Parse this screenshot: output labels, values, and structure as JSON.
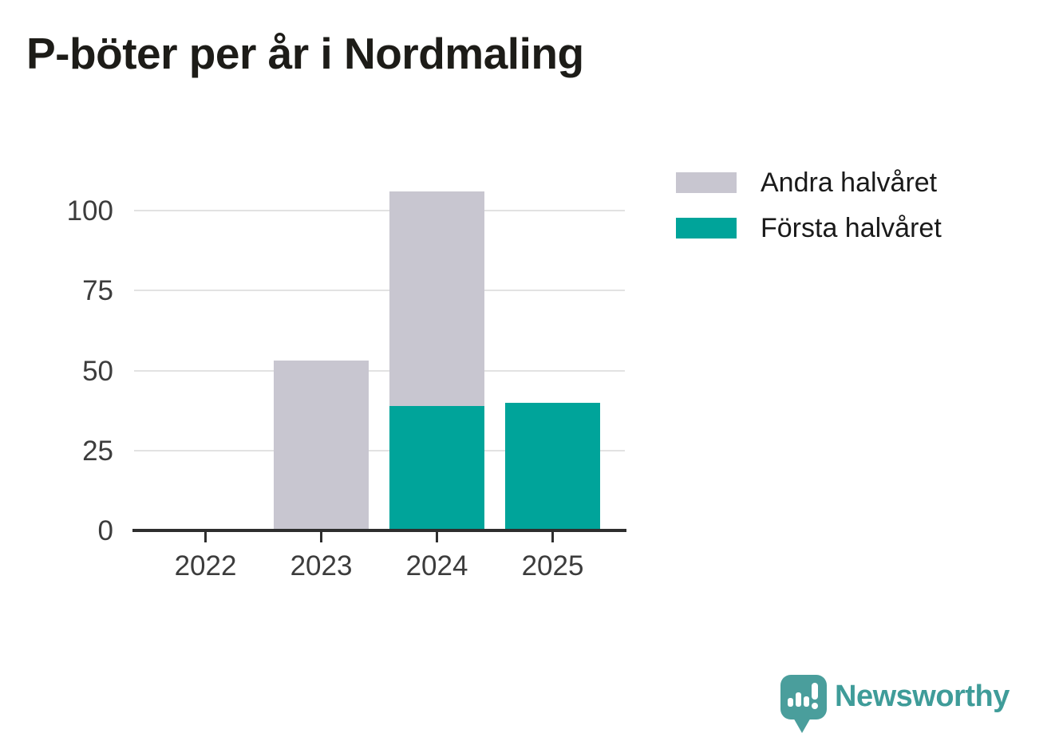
{
  "page": {
    "background": "#ffffff"
  },
  "header": {
    "title": "P-böter per år i Nordmaling"
  },
  "chart_data": {
    "type": "bar",
    "stacked": true,
    "title": "P-böter per år i Nordmaling",
    "categories": [
      "2022",
      "2023",
      "2024",
      "2025"
    ],
    "series": [
      {
        "name": "Första halvåret",
        "color": "#00a49a",
        "values": [
          0,
          0,
          39,
          40
        ]
      },
      {
        "name": "Andra halvåret",
        "color": "#c8c6d0",
        "values": [
          0,
          53,
          67,
          0
        ]
      }
    ],
    "totals": [
      0,
      53,
      106,
      40
    ],
    "xlabel": "",
    "ylabel": "",
    "yticks": [
      0,
      25,
      50,
      75,
      100
    ],
    "ylim": [
      0,
      110
    ],
    "grid": true,
    "gridline_color": "#e2e2e2",
    "axis_color": "#2e2e2e",
    "tick_label_color": "#3c3c3c",
    "legend_position": "right-top"
  },
  "legend": {
    "items": [
      {
        "label": "Andra halvåret",
        "color": "#c8c6d0"
      },
      {
        "label": "Första halvåret",
        "color": "#00a49a"
      }
    ]
  },
  "footer": {
    "brand": "Newsworthy",
    "brand_color": "#3f9c99",
    "logo_color": "#4a9e9c",
    "logo_icon": "speech-bubble-bar-chart-exclamation"
  }
}
